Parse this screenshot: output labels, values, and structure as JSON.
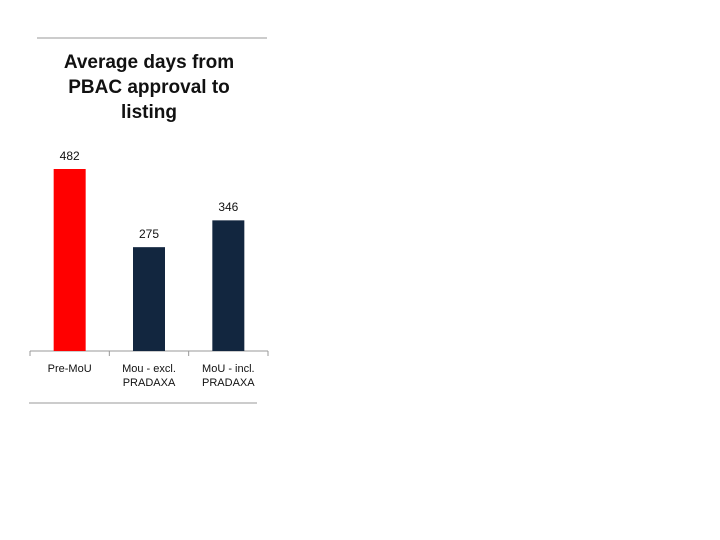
{
  "chart_data": {
    "type": "bar",
    "title": "Average days from PBAC approval to listing",
    "categories": [
      "Pre-MoU",
      "Mou - excl. PRADAXA",
      "MoU - incl. PRADAXA"
    ],
    "values": [
      482,
      275,
      346
    ],
    "colors": [
      "#ff0000",
      "#12263f",
      "#12263f"
    ]
  }
}
